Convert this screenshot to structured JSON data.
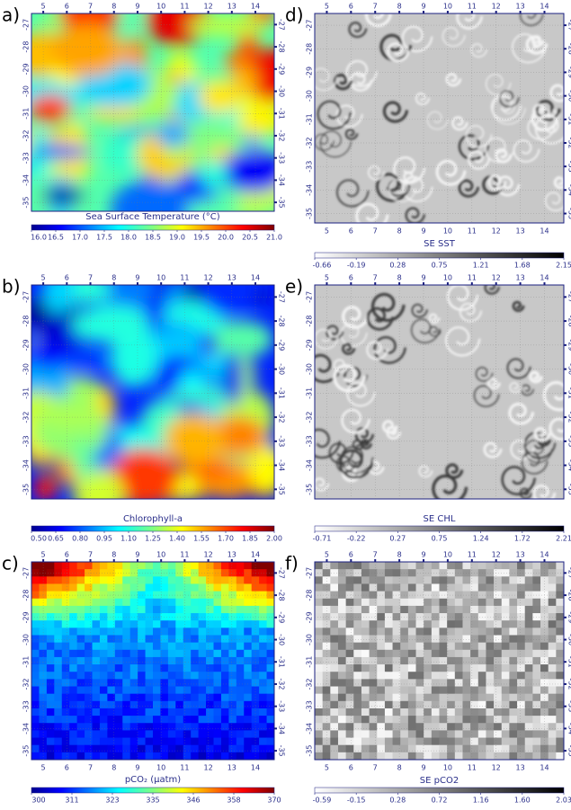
{
  "panels": [
    {
      "label": "a)",
      "x_ticks": [
        5,
        6,
        7,
        8,
        9,
        10,
        11,
        12,
        13,
        14
      ],
      "y_ticks": [
        -27,
        -28,
        -29,
        -30,
        -31,
        -32,
        -33,
        -34,
        -35
      ],
      "colorbar_label": "Sea Surface Temperature (°C)",
      "colorbar_ticks": [
        "16.0",
        "16.5",
        "17.0",
        "17.5",
        "18.0",
        "18.5",
        "19.0",
        "19.5",
        "20.0",
        "20.5",
        "21.0"
      ]
    },
    {
      "label": "b)",
      "x_ticks": [
        5,
        6,
        7,
        8,
        9,
        10,
        11,
        12,
        13,
        14
      ],
      "y_ticks": [
        -27,
        -28,
        -29,
        -30,
        -31,
        -32,
        -33,
        -34,
        -35
      ],
      "colorbar_label": "Chlorophyll-a",
      "colorbar_ticks": [
        "0.50",
        "0.65",
        "0.80",
        "0.95",
        "1.10",
        "1.25",
        "1.40",
        "1.55",
        "1.70",
        "1.85",
        "2.00"
      ]
    },
    {
      "label": "c)",
      "x_ticks": [
        5,
        6,
        7,
        8,
        9,
        10,
        11,
        12,
        13,
        14
      ],
      "y_ticks": [
        -27,
        -28,
        -29,
        -30,
        -31,
        -32,
        -33,
        -34,
        -35
      ],
      "colorbar_label": "pCO₂ (µatm)",
      "colorbar_ticks": [
        "300",
        "311",
        "323",
        "335",
        "346",
        "358",
        "370"
      ]
    },
    {
      "label": "d)",
      "x_ticks": [
        5,
        6,
        7,
        8,
        9,
        10,
        11,
        12,
        13,
        14
      ],
      "y_ticks": [
        -27,
        -28,
        -29,
        -30,
        -31,
        -32,
        -33,
        -34,
        -35
      ],
      "colorbar_label": "SE SST",
      "colorbar_ticks": [
        "-0.66",
        "-0.19",
        "0.28",
        "0.75",
        "1.21",
        "1.68",
        "2.15"
      ]
    },
    {
      "label": "e)",
      "x_ticks": [
        5,
        6,
        7,
        8,
        9,
        10,
        11,
        12,
        13,
        14
      ],
      "y_ticks": [
        -27,
        -28,
        -29,
        -30,
        -31,
        -32,
        -33,
        -34,
        -35
      ],
      "colorbar_label": "SE CHL",
      "colorbar_ticks": [
        "-0.71",
        "-0.22",
        "0.27",
        "0.75",
        "1.24",
        "1.72",
        "2.21"
      ]
    },
    {
      "label": "f)",
      "x_ticks": [
        5,
        6,
        7,
        8,
        9,
        10,
        11,
        12,
        13,
        14
      ],
      "y_ticks": [
        -27,
        -28,
        -29,
        -30,
        -31,
        -32,
        -33,
        -34,
        -35
      ],
      "colorbar_label": "SE pCO2",
      "colorbar_ticks": [
        "-0.59",
        "-0.15",
        "0.28",
        "0.72",
        "1.16",
        "1.60",
        "2.03"
      ]
    }
  ]
}
